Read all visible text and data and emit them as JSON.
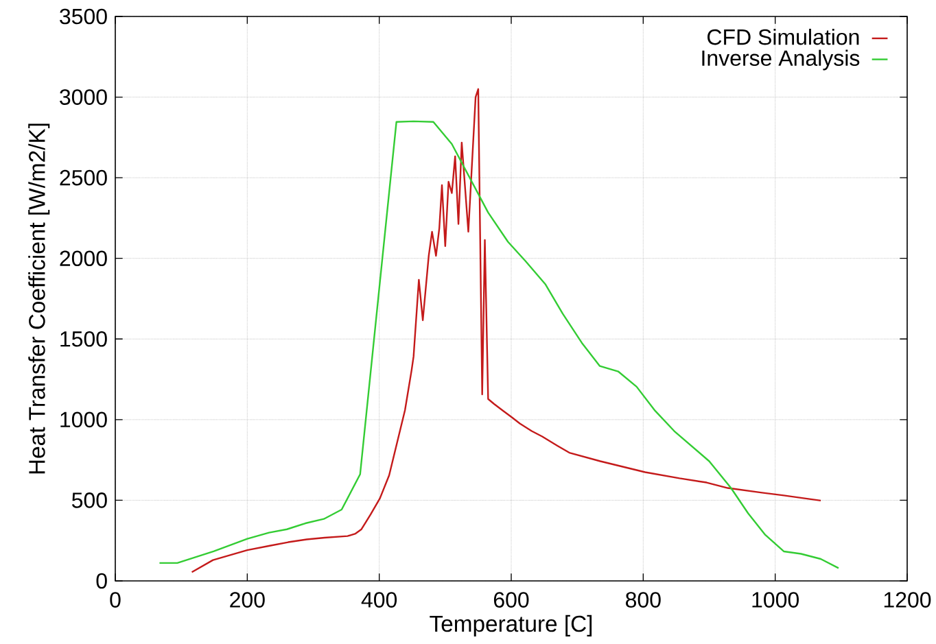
{
  "chart_data": {
    "type": "line",
    "xlabel": "Temperature [C]",
    "ylabel": "Heat Transfer Coefficient [W/m2/K]",
    "xlim": [
      0,
      1200
    ],
    "ylim": [
      0,
      3500
    ],
    "xticks": [
      0,
      200,
      400,
      600,
      800,
      1000,
      1200
    ],
    "yticks": [
      0,
      500,
      1000,
      1500,
      2000,
      2500,
      3000,
      3500
    ],
    "grid": true,
    "legend": "top right",
    "marker": "none",
    "line_style": "solid",
    "series": [
      {
        "name": "CFD Simulation",
        "color": "#c41a1a",
        "x": [
          116,
          148,
          200,
          234,
          262,
          290,
          317,
          352,
          364,
          373,
          387,
          401,
          415,
          439,
          449,
          452,
          460,
          466,
          475,
          480,
          486,
          491,
          495,
          500,
          505,
          510,
          515,
          520,
          525,
          535,
          546,
          550,
          556,
          560,
          565,
          574,
          587,
          601,
          613,
          631,
          647,
          670,
          688,
          735,
          803,
          855,
          896,
          928,
          980,
          1013,
          1039,
          1069
        ],
        "values": [
          54,
          129,
          191,
          218,
          240,
          257,
          268,
          278,
          293,
          320,
          413,
          512,
          655,
          1059,
          1306,
          1391,
          1867,
          1616,
          2016,
          2165,
          2016,
          2186,
          2454,
          2076,
          2475,
          2405,
          2633,
          2213,
          2718,
          2165,
          3000,
          3050,
          1157,
          2114,
          1128,
          1097,
          1057,
          1014,
          976,
          929,
          895,
          838,
          795,
          742,
          674,
          636,
          610,
          576,
          547,
          530,
          515,
          498
        ]
      },
      {
        "name": "Inverse Analysis",
        "color": "#33cc33",
        "x": [
          67,
          94,
          149,
          200,
          233,
          260,
          288,
          316,
          343,
          371,
          426,
          452,
          482,
          510,
          565,
          595,
          621,
          652,
          678,
          707,
          734,
          762,
          790,
          818,
          847,
          900,
          933,
          959,
          985,
          1013,
          1039,
          1069,
          1096
        ],
        "values": [
          111,
          111,
          183,
          261,
          299,
          320,
          357,
          384,
          442,
          661,
          2846,
          2850,
          2846,
          2709,
          2284,
          2103,
          1986,
          1838,
          1657,
          1476,
          1333,
          1299,
          1204,
          1055,
          929,
          742,
          576,
          419,
          285,
          183,
          168,
          136,
          79
        ]
      }
    ]
  }
}
